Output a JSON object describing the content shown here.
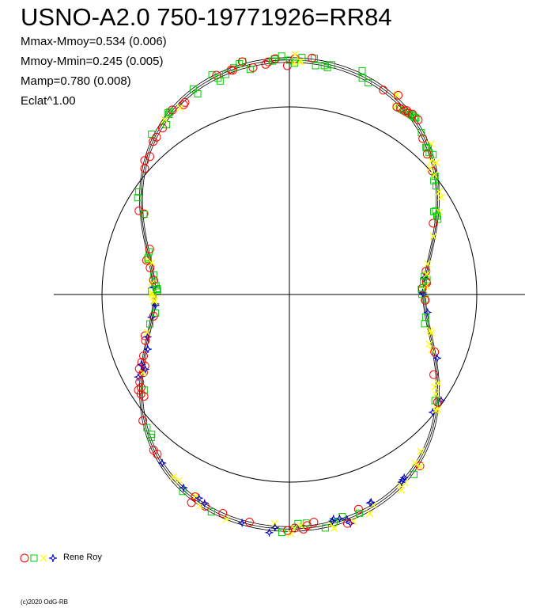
{
  "chart_data": {
    "type": "scatter",
    "subtype": "polar-lightcurve",
    "title": "USNO-A2.0 750-19771926=RR84",
    "stats": [
      "Mmax-Mmoy=0.534 (0.006)",
      "Mmoy-Mmin=0.245 (0.005)",
      "Mamp=0.780 (0.008)",
      "Eclat^1.00"
    ],
    "mmax_minus_mmoy": 0.534,
    "mmoy_minus_mmin": 0.245,
    "amplitude": 0.78,
    "reference_circle_radius": 1.0,
    "axes": {
      "xlim": [
        -1.26,
        1.26
      ],
      "ylim": [
        -1.26,
        1.26
      ],
      "grid": false
    },
    "fit_curve": {
      "harmonics": [
        {
          "n": 2,
          "amplitude": 0.25,
          "phase_deg": 180
        }
      ],
      "base_radius": 1.255,
      "points_per_degree": 1
    },
    "series": [
      {
        "name": "Rene Roy",
        "symbols": [
          "red-circle",
          "green-square",
          "yellow-cross",
          "blue-star"
        ],
        "colors": [
          "#ff0000",
          "#00cc00",
          "#ffff00",
          "#0000cc"
        ],
        "n_points_estimate": 260
      }
    ],
    "legend": {
      "position": "bottom-left",
      "label": "Rene Roy"
    },
    "copyright": "(c)2020 OdG-RB"
  }
}
